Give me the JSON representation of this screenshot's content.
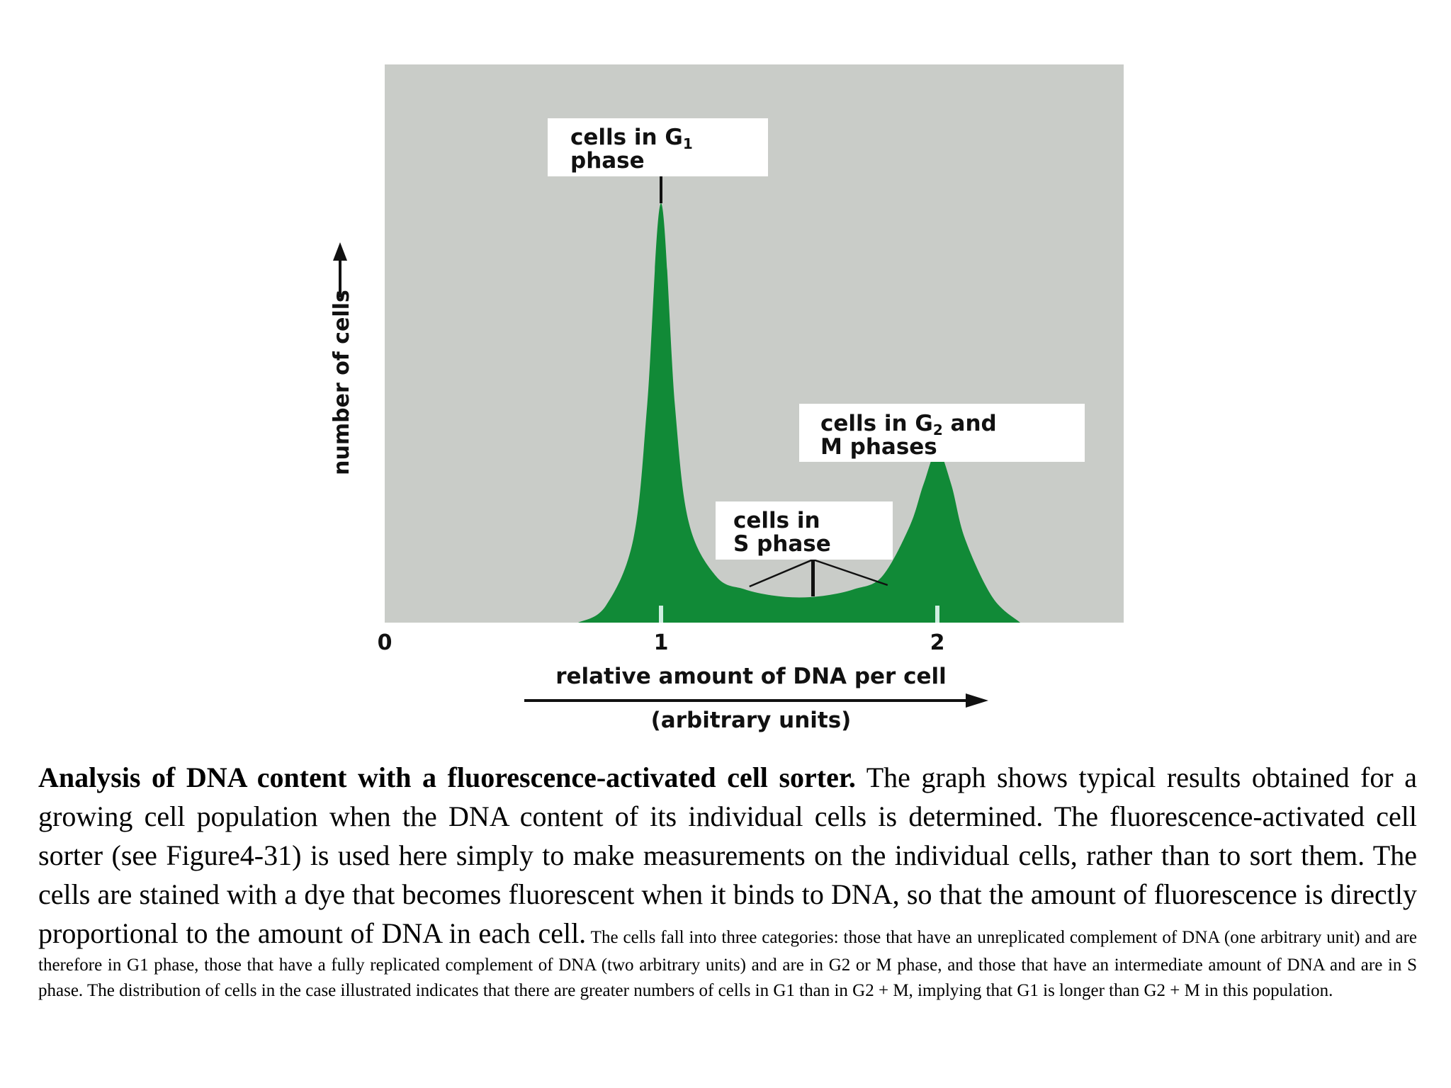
{
  "chart_data": {
    "type": "area",
    "ylabel": "number of cells",
    "xlabel_line1": "relative amount of DNA per cell",
    "xlabel_line2": "(arbitrary units)",
    "x_ticks": [
      "0",
      "1",
      "2"
    ],
    "xlim": [
      0,
      2.7
    ],
    "ylim": [
      0,
      1
    ],
    "grid": false,
    "colors": {
      "fill": "#118a37",
      "background": "#c9ccc8"
    },
    "series": [
      {
        "x": [
          0.7,
          0.8,
          0.9,
          0.95,
          1.0,
          1.05,
          1.1,
          1.2,
          1.3,
          1.4,
          1.5,
          1.6,
          1.7,
          1.8,
          1.9,
          1.95,
          2.0,
          2.05,
          2.1,
          2.2,
          2.3
        ],
        "values": [
          0.0,
          0.04,
          0.2,
          0.52,
          1.0,
          0.52,
          0.24,
          0.11,
          0.08,
          0.065,
          0.06,
          0.065,
          0.08,
          0.11,
          0.23,
          0.33,
          0.41,
          0.33,
          0.2,
          0.06,
          0.0
        ]
      }
    ],
    "annotations": [
      {
        "line1": "cells in G",
        "sub": "1",
        "line2": "phase",
        "x": 1.0,
        "y": 1.0
      },
      {
        "line1": "cells in G",
        "sub": "2",
        "line1_rest": " and",
        "line2": "M phases",
        "x": 2.0,
        "y": 0.41
      },
      {
        "line1": "cells in",
        "line2": "S phase",
        "x": 1.55,
        "y": 0.06
      }
    ]
  },
  "caption": {
    "bold": "Analysis of DNA content with a fluorescence-activated cell sorter.",
    "rest": " The graph shows typical results obtained for a growing cell population when the DNA content of its individual cells is determined. The fluorescence-activated cell sorter (see Figure4-31) is used here simply to make measurements on the individual cells, rather than to sort them. The cells are stained with a dye that becomes fluorescent when it binds to DNA, so that the amount of fluorescence is directly proportional to the amount of DNA in each cell.",
    "small": " The cells fall into three categories: those that have an unreplicated complement of DNA (one arbitrary unit) and are therefore in G1 phase, those that have a fully replicated complement of DNA (two arbitrary units) and are in G2 or M phase, and those that have an intermediate amount of DNA and are in S phase. The distribution of cells in the case illustrated indicates that there are greater numbers of cells in G1 than in G2 + M, implying that G1 is longer than G2 + M in this population."
  }
}
